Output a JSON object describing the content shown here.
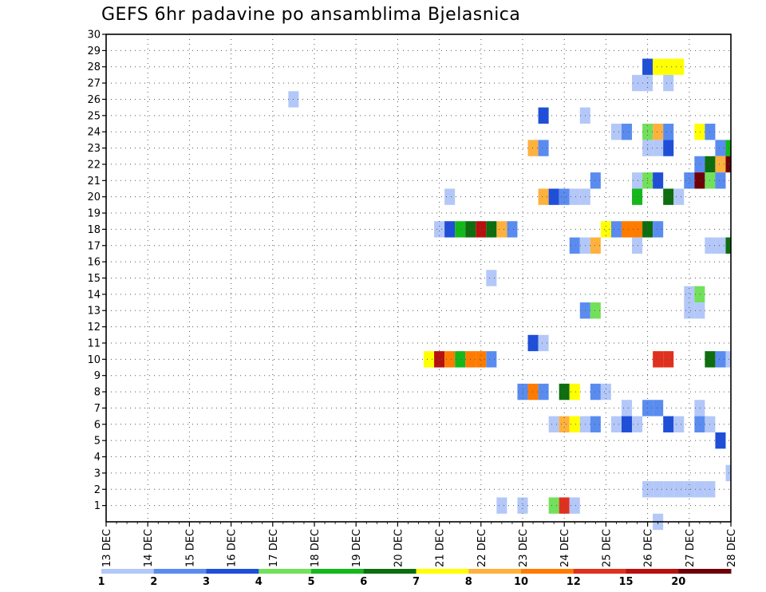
{
  "chart_data": {
    "type": "heatmap",
    "title": "GEFS 6hr padavine po ansamblima Bjelasnica",
    "xlabel": "",
    "ylabel": "",
    "x_tick_labels": [
      "13 DEC",
      "14 DEC",
      "15 DEC",
      "16 DEC",
      "17 DEC",
      "18 DEC",
      "19 DEC",
      "20 DEC",
      "21 DEC",
      "22 DEC",
      "23 DEC",
      "24 DEC",
      "25 DEC",
      "26 DEC",
      "27 DEC",
      "28 DEC"
    ],
    "x_steps_per_day": 4,
    "x_range_steps": [
      0,
      60
    ],
    "y_tick_labels": [
      "1",
      "2",
      "3",
      "4",
      "5",
      "6",
      "7",
      "8",
      "9",
      "10",
      "11",
      "12",
      "13",
      "14",
      "15",
      "16",
      "17",
      "18",
      "19",
      "20",
      "21",
      "22",
      "23",
      "24",
      "25",
      "26",
      "27",
      "28",
      "29",
      "30"
    ],
    "y_range": [
      0,
      30
    ],
    "grid": true,
    "colorbar": {
      "colors": [
        "#b3c8f8",
        "#5a8cf0",
        "#1f4fd8",
        "#72e05a",
        "#14b81a",
        "#0d6e10",
        "#ffff00",
        "#ffb13d",
        "#ff7b00",
        "#e0301e",
        "#b80f0f",
        "#6e0008"
      ],
      "tick_labels": [
        "1",
        "2",
        "3",
        "4",
        "5",
        "6",
        "7",
        "8",
        "10",
        "12",
        "15",
        "20"
      ]
    },
    "cells_format": "[member, time_step, color_index]",
    "cells": [
      [
        28,
        52,
        2
      ],
      [
        28,
        53,
        6
      ],
      [
        28,
        54,
        6
      ],
      [
        28,
        55,
        6
      ],
      [
        27,
        51,
        0
      ],
      [
        27,
        52,
        0
      ],
      [
        27,
        54,
        0
      ],
      [
        26,
        18,
        0
      ],
      [
        25,
        42,
        2
      ],
      [
        25,
        46,
        0
      ],
      [
        24,
        49,
        0
      ],
      [
        24,
        50,
        1
      ],
      [
        24,
        52,
        3
      ],
      [
        24,
        53,
        7
      ],
      [
        24,
        54,
        1
      ],
      [
        24,
        57,
        6
      ],
      [
        24,
        58,
        1
      ],
      [
        23,
        41,
        7
      ],
      [
        23,
        42,
        1
      ],
      [
        23,
        52,
        0
      ],
      [
        23,
        53,
        0
      ],
      [
        23,
        54,
        2
      ],
      [
        23,
        59,
        1
      ],
      [
        23,
        60,
        4
      ],
      [
        22,
        57,
        1
      ],
      [
        22,
        58,
        5
      ],
      [
        22,
        59,
        7
      ],
      [
        22,
        60,
        11
      ],
      [
        21,
        47,
        1
      ],
      [
        21,
        51,
        0
      ],
      [
        21,
        52,
        3
      ],
      [
        21,
        53,
        2
      ],
      [
        21,
        56,
        1
      ],
      [
        21,
        57,
        11
      ],
      [
        21,
        58,
        3
      ],
      [
        21,
        59,
        1
      ],
      [
        20,
        33,
        0
      ],
      [
        20,
        42,
        7
      ],
      [
        20,
        43,
        2
      ],
      [
        20,
        44,
        1
      ],
      [
        20,
        45,
        0
      ],
      [
        20,
        46,
        0
      ],
      [
        20,
        51,
        4
      ],
      [
        20,
        54,
        5
      ],
      [
        20,
        55,
        0
      ],
      [
        18,
        32,
        0
      ],
      [
        18,
        33,
        2
      ],
      [
        18,
        34,
        4
      ],
      [
        18,
        35,
        5
      ],
      [
        18,
        36,
        10
      ],
      [
        18,
        37,
        5
      ],
      [
        18,
        38,
        7
      ],
      [
        18,
        39,
        1
      ],
      [
        18,
        48,
        6
      ],
      [
        18,
        49,
        1
      ],
      [
        18,
        50,
        8
      ],
      [
        18,
        51,
        8
      ],
      [
        18,
        52,
        5
      ],
      [
        18,
        53,
        1
      ],
      [
        17,
        45,
        1
      ],
      [
        17,
        46,
        0
      ],
      [
        17,
        47,
        7
      ],
      [
        17,
        51,
        0
      ],
      [
        17,
        58,
        0
      ],
      [
        17,
        59,
        0
      ],
      [
        17,
        60,
        5
      ],
      [
        15,
        37,
        0
      ],
      [
        14,
        56,
        0
      ],
      [
        14,
        57,
        3
      ],
      [
        13,
        46,
        1
      ],
      [
        13,
        47,
        3
      ],
      [
        13,
        56,
        0
      ],
      [
        13,
        57,
        0
      ],
      [
        11,
        41,
        2
      ],
      [
        11,
        42,
        0
      ],
      [
        10,
        31,
        6
      ],
      [
        10,
        32,
        10
      ],
      [
        10,
        33,
        8
      ],
      [
        10,
        34,
        4
      ],
      [
        10,
        35,
        8
      ],
      [
        10,
        36,
        8
      ],
      [
        10,
        37,
        1
      ],
      [
        10,
        53,
        9
      ],
      [
        10,
        54,
        9
      ],
      [
        10,
        58,
        5
      ],
      [
        10,
        59,
        1
      ],
      [
        10,
        60,
        0
      ],
      [
        8,
        40,
        1
      ],
      [
        8,
        41,
        8
      ],
      [
        8,
        42,
        1
      ],
      [
        8,
        44,
        5
      ],
      [
        8,
        45,
        6
      ],
      [
        8,
        47,
        1
      ],
      [
        8,
        48,
        0
      ],
      [
        7,
        50,
        0
      ],
      [
        7,
        52,
        1
      ],
      [
        7,
        53,
        1
      ],
      [
        7,
        57,
        0
      ],
      [
        6,
        43,
        0
      ],
      [
        6,
        44,
        7
      ],
      [
        6,
        45,
        6
      ],
      [
        6,
        46,
        0
      ],
      [
        6,
        47,
        1
      ],
      [
        6,
        49,
        0
      ],
      [
        6,
        50,
        2
      ],
      [
        6,
        51,
        0
      ],
      [
        6,
        54,
        2
      ],
      [
        6,
        55,
        0
      ],
      [
        6,
        57,
        1
      ],
      [
        6,
        58,
        0
      ],
      [
        5,
        59,
        2
      ],
      [
        3,
        60,
        0
      ],
      [
        2,
        52,
        0
      ],
      [
        2,
        53,
        0
      ],
      [
        2,
        54,
        0
      ],
      [
        2,
        55,
        0
      ],
      [
        2,
        56,
        0
      ],
      [
        2,
        57,
        0
      ],
      [
        2,
        58,
        0
      ],
      [
        1,
        38,
        0
      ],
      [
        1,
        40,
        0
      ],
      [
        1,
        43,
        3
      ],
      [
        1,
        44,
        9
      ],
      [
        1,
        45,
        0
      ],
      [
        0,
        53,
        0
      ]
    ]
  }
}
